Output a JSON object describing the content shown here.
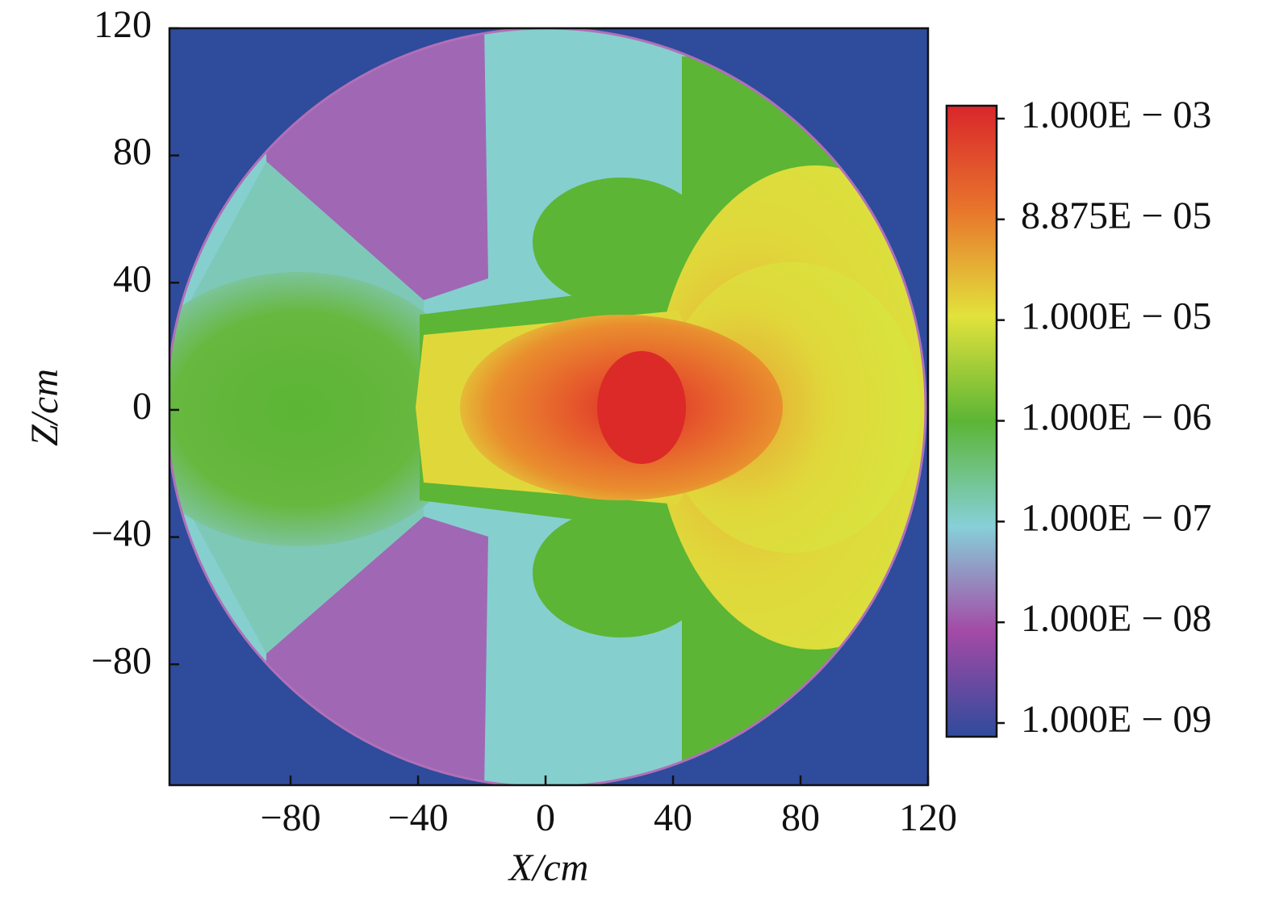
{
  "chart_data": {
    "type": "heatmap",
    "xlabel": "X/cm",
    "ylabel": "Z/cm",
    "xlim": [
      -118,
      120
    ],
    "ylim": [
      -118,
      120
    ],
    "xticks": [
      {
        "value": -80,
        "label": "−80"
      },
      {
        "value": -40,
        "label": "−40"
      },
      0,
      40,
      80,
      120
    ],
    "yticks": [
      {
        "value": -80,
        "label": "−80"
      },
      {
        "value": -40,
        "label": "−40"
      },
      0,
      40,
      80,
      120
    ],
    "colorbar": {
      "ticks": [
        {
          "value": 0.001,
          "label": "1.000E − 03"
        },
        {
          "value": 8.875e-05,
          "label": "8.875E − 05"
        },
        {
          "value": 1e-05,
          "label": "1.000E − 05"
        },
        {
          "value": 1e-06,
          "label": "1.000E − 06"
        },
        {
          "value": 1e-07,
          "label": "1.000E − 07"
        },
        {
          "value": 1e-08,
          "label": "1.000E − 08"
        },
        {
          "value": 1e-09,
          "label": "1.000E − 09"
        }
      ],
      "colors": [
        "#d9262b",
        "#e8762c",
        "#e2e23c",
        "#5cb535",
        "#86d0d8",
        "#a34aa6",
        "#2f4b9c"
      ]
    }
  }
}
